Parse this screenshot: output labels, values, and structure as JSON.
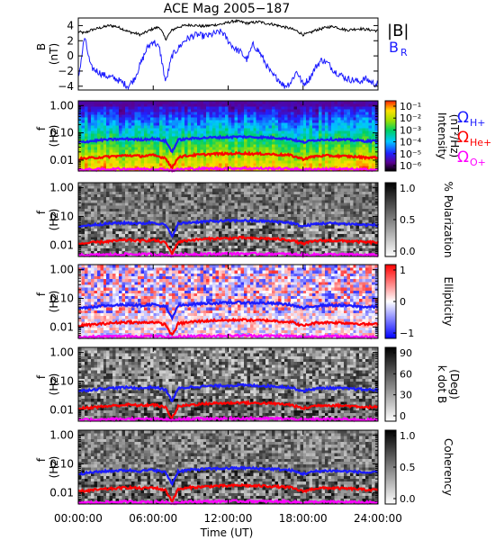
{
  "title": "ACE Mag 2005−187",
  "x_axis": {
    "label": "Time (UT)",
    "ticks": [
      "00:00:00",
      "06:00:00",
      "12:00:00",
      "18:00:00",
      "24:00:00"
    ],
    "tick_hours": [
      0,
      6,
      12,
      18,
      24
    ],
    "range_hours": [
      0,
      24
    ]
  },
  "legend_b": {
    "total": "|B|",
    "radial": "B",
    "radial_sub": "R"
  },
  "legend_gyro": [
    {
      "symbol": "Ω",
      "sub": "H+",
      "color": "#1b1bff"
    },
    {
      "symbol": "Ω",
      "sub": "He+",
      "color": "#ff0000"
    },
    {
      "symbol": "Ω",
      "sub": "O+",
      "color": "#ff00ff"
    }
  ],
  "freq_ticks": [
    "1.00",
    "0.10",
    "0.01"
  ],
  "chart_data": [
    {
      "type": "line",
      "id": "magnetic-field",
      "ylabel": "B",
      "yunit": "(nT)",
      "ylim": [
        -4.5,
        5
      ],
      "yticks": [
        -4,
        -2,
        0,
        2,
        4
      ],
      "series": [
        {
          "name": "|B|",
          "color": "#000000",
          "x": [
            0,
            0.5,
            1,
            1.5,
            2,
            2.5,
            3,
            3.5,
            4,
            4.5,
            5,
            5.5,
            6,
            6.5,
            7,
            7.5,
            8,
            8.5,
            9,
            9.5,
            10,
            10.5,
            11,
            11.5,
            12,
            12.5,
            13,
            13.5,
            14,
            14.5,
            15,
            15.5,
            16,
            16.5,
            17,
            17.5,
            18,
            18.5,
            19,
            19.5,
            20,
            20.5,
            21,
            21.5,
            22,
            22.5,
            23,
            23.5,
            24
          ],
          "y": [
            3.2,
            3.0,
            3.4,
            3.6,
            3.8,
            4.0,
            3.9,
            3.6,
            3.2,
            3.0,
            2.8,
            3.2,
            3.6,
            3.8,
            2.2,
            3.4,
            3.8,
            4.0,
            4.1,
            4.0,
            3.9,
            4.0,
            4.1,
            4.2,
            4.4,
            4.6,
            4.5,
            4.3,
            4.4,
            4.5,
            4.3,
            4.2,
            4.0,
            3.8,
            3.6,
            3.3,
            2.8,
            3.0,
            3.4,
            3.6,
            3.8,
            3.9,
            3.6,
            3.4,
            3.5,
            3.6,
            3.5,
            3.4,
            3.3
          ]
        },
        {
          "name": "B",
          "color": "#1b1bff",
          "x": [
            0,
            0.5,
            1,
            1.5,
            2,
            2.5,
            3,
            3.5,
            4,
            4.5,
            5,
            5.5,
            6,
            6.5,
            7,
            7.5,
            8,
            8.5,
            9,
            9.5,
            10,
            10.5,
            11,
            11.5,
            12,
            12.5,
            13,
            13.5,
            14,
            14.5,
            15,
            15.5,
            16,
            16.5,
            17,
            17.5,
            18,
            18.5,
            19,
            19.5,
            20,
            20.5,
            21,
            21.5,
            22,
            22.5,
            23,
            23.5,
            24
          ],
          "y": [
            -3.0,
            2.5,
            -1.5,
            -2.0,
            -2.5,
            -2.8,
            -3.0,
            -3.5,
            -4.0,
            -3.0,
            -1.0,
            1.0,
            2.0,
            1.0,
            -3.5,
            0.0,
            1.0,
            2.0,
            2.5,
            2.8,
            2.6,
            2.7,
            3.0,
            3.2,
            2.0,
            1.0,
            0.5,
            -0.5,
            1.5,
            0.5,
            -1.0,
            -2.5,
            -3.0,
            -4.0,
            -3.5,
            -2.0,
            -3.8,
            -3.0,
            -1.5,
            -0.5,
            -1.0,
            -2.0,
            -2.5,
            -3.0,
            -3.2,
            -3.4,
            -3.0,
            -3.5,
            -3.8
          ]
        }
      ]
    },
    {
      "type": "heatmap",
      "id": "intensity",
      "ylabel": "f",
      "yunit": "(Hz)",
      "ylim": [
        0.004,
        1.5
      ],
      "yscale": "log",
      "colorbar": {
        "label": "Intensity",
        "unit": "(nT²/Hz)",
        "scale": "rainbow",
        "ticks": [
          "10⁻¹",
          "10⁻²",
          "10⁻³",
          "10⁻⁴",
          "10⁻⁵",
          "10⁻⁶"
        ]
      }
    },
    {
      "type": "heatmap",
      "id": "polarization",
      "ylabel": "f",
      "yunit": "(Hz)",
      "ylim": [
        0.004,
        1.5
      ],
      "yscale": "log",
      "colorbar": {
        "label": "% Polarization",
        "scale": "gray",
        "ticks": [
          "1.0",
          "0.5",
          "0.0"
        ]
      }
    },
    {
      "type": "heatmap",
      "id": "ellipticity",
      "ylabel": "f",
      "yunit": "(Hz)",
      "ylim": [
        0.004,
        1.5
      ],
      "yscale": "log",
      "colorbar": {
        "label": "Ellipticity",
        "scale": "bluewhitered",
        "ticks": [
          "1",
          "0",
          "−1"
        ]
      }
    },
    {
      "type": "heatmap",
      "id": "k-dot-b",
      "ylabel": "f",
      "yunit": "(Hz)",
      "ylim": [
        0.004,
        1.5
      ],
      "yscale": "log",
      "colorbar": {
        "label": "k dot B",
        "unit": "(Deg)",
        "scale": "gray",
        "ticks": [
          "90",
          "60",
          "30",
          "0"
        ]
      }
    },
    {
      "type": "heatmap",
      "id": "coherency",
      "ylabel": "f",
      "yunit": "(Hz)",
      "ylim": [
        0.004,
        1.5
      ],
      "yscale": "log",
      "colorbar": {
        "label": "Coherency",
        "scale": "gray",
        "ticks": [
          "1.0",
          "0.5",
          "0.0"
        ]
      }
    }
  ],
  "gyrofrequency_lines": {
    "x": [
      0,
      1,
      2,
      3,
      4,
      5,
      6,
      7,
      7.5,
      8,
      9,
      10,
      11,
      12,
      13,
      14,
      15,
      16,
      17,
      18,
      19,
      20,
      21,
      22,
      23,
      24
    ],
    "H+": [
      0.045,
      0.05,
      0.055,
      0.058,
      0.06,
      0.056,
      0.062,
      0.05,
      0.02,
      0.055,
      0.062,
      0.066,
      0.068,
      0.07,
      0.072,
      0.07,
      0.068,
      0.065,
      0.06,
      0.045,
      0.055,
      0.058,
      0.056,
      0.054,
      0.05,
      0.05
    ],
    "He+": [
      0.011,
      0.012,
      0.013,
      0.014,
      0.015,
      0.014,
      0.015,
      0.012,
      0.005,
      0.013,
      0.015,
      0.016,
      0.017,
      0.017,
      0.018,
      0.017,
      0.017,
      0.016,
      0.015,
      0.011,
      0.014,
      0.0145,
      0.014,
      0.0135,
      0.0125,
      0.0125
    ],
    "O+": [
      0.0045,
      0.0045,
      0.0046,
      0.0047,
      0.0048,
      0.0047,
      0.0048,
      0.0046,
      0.0042,
      0.0046,
      0.0048,
      0.0049,
      0.0049,
      0.005,
      0.005,
      0.005,
      0.0049,
      0.0049,
      0.0048,
      0.0045,
      0.0047,
      0.0047,
      0.0047,
      0.0046,
      0.0045,
      0.0045
    ]
  }
}
